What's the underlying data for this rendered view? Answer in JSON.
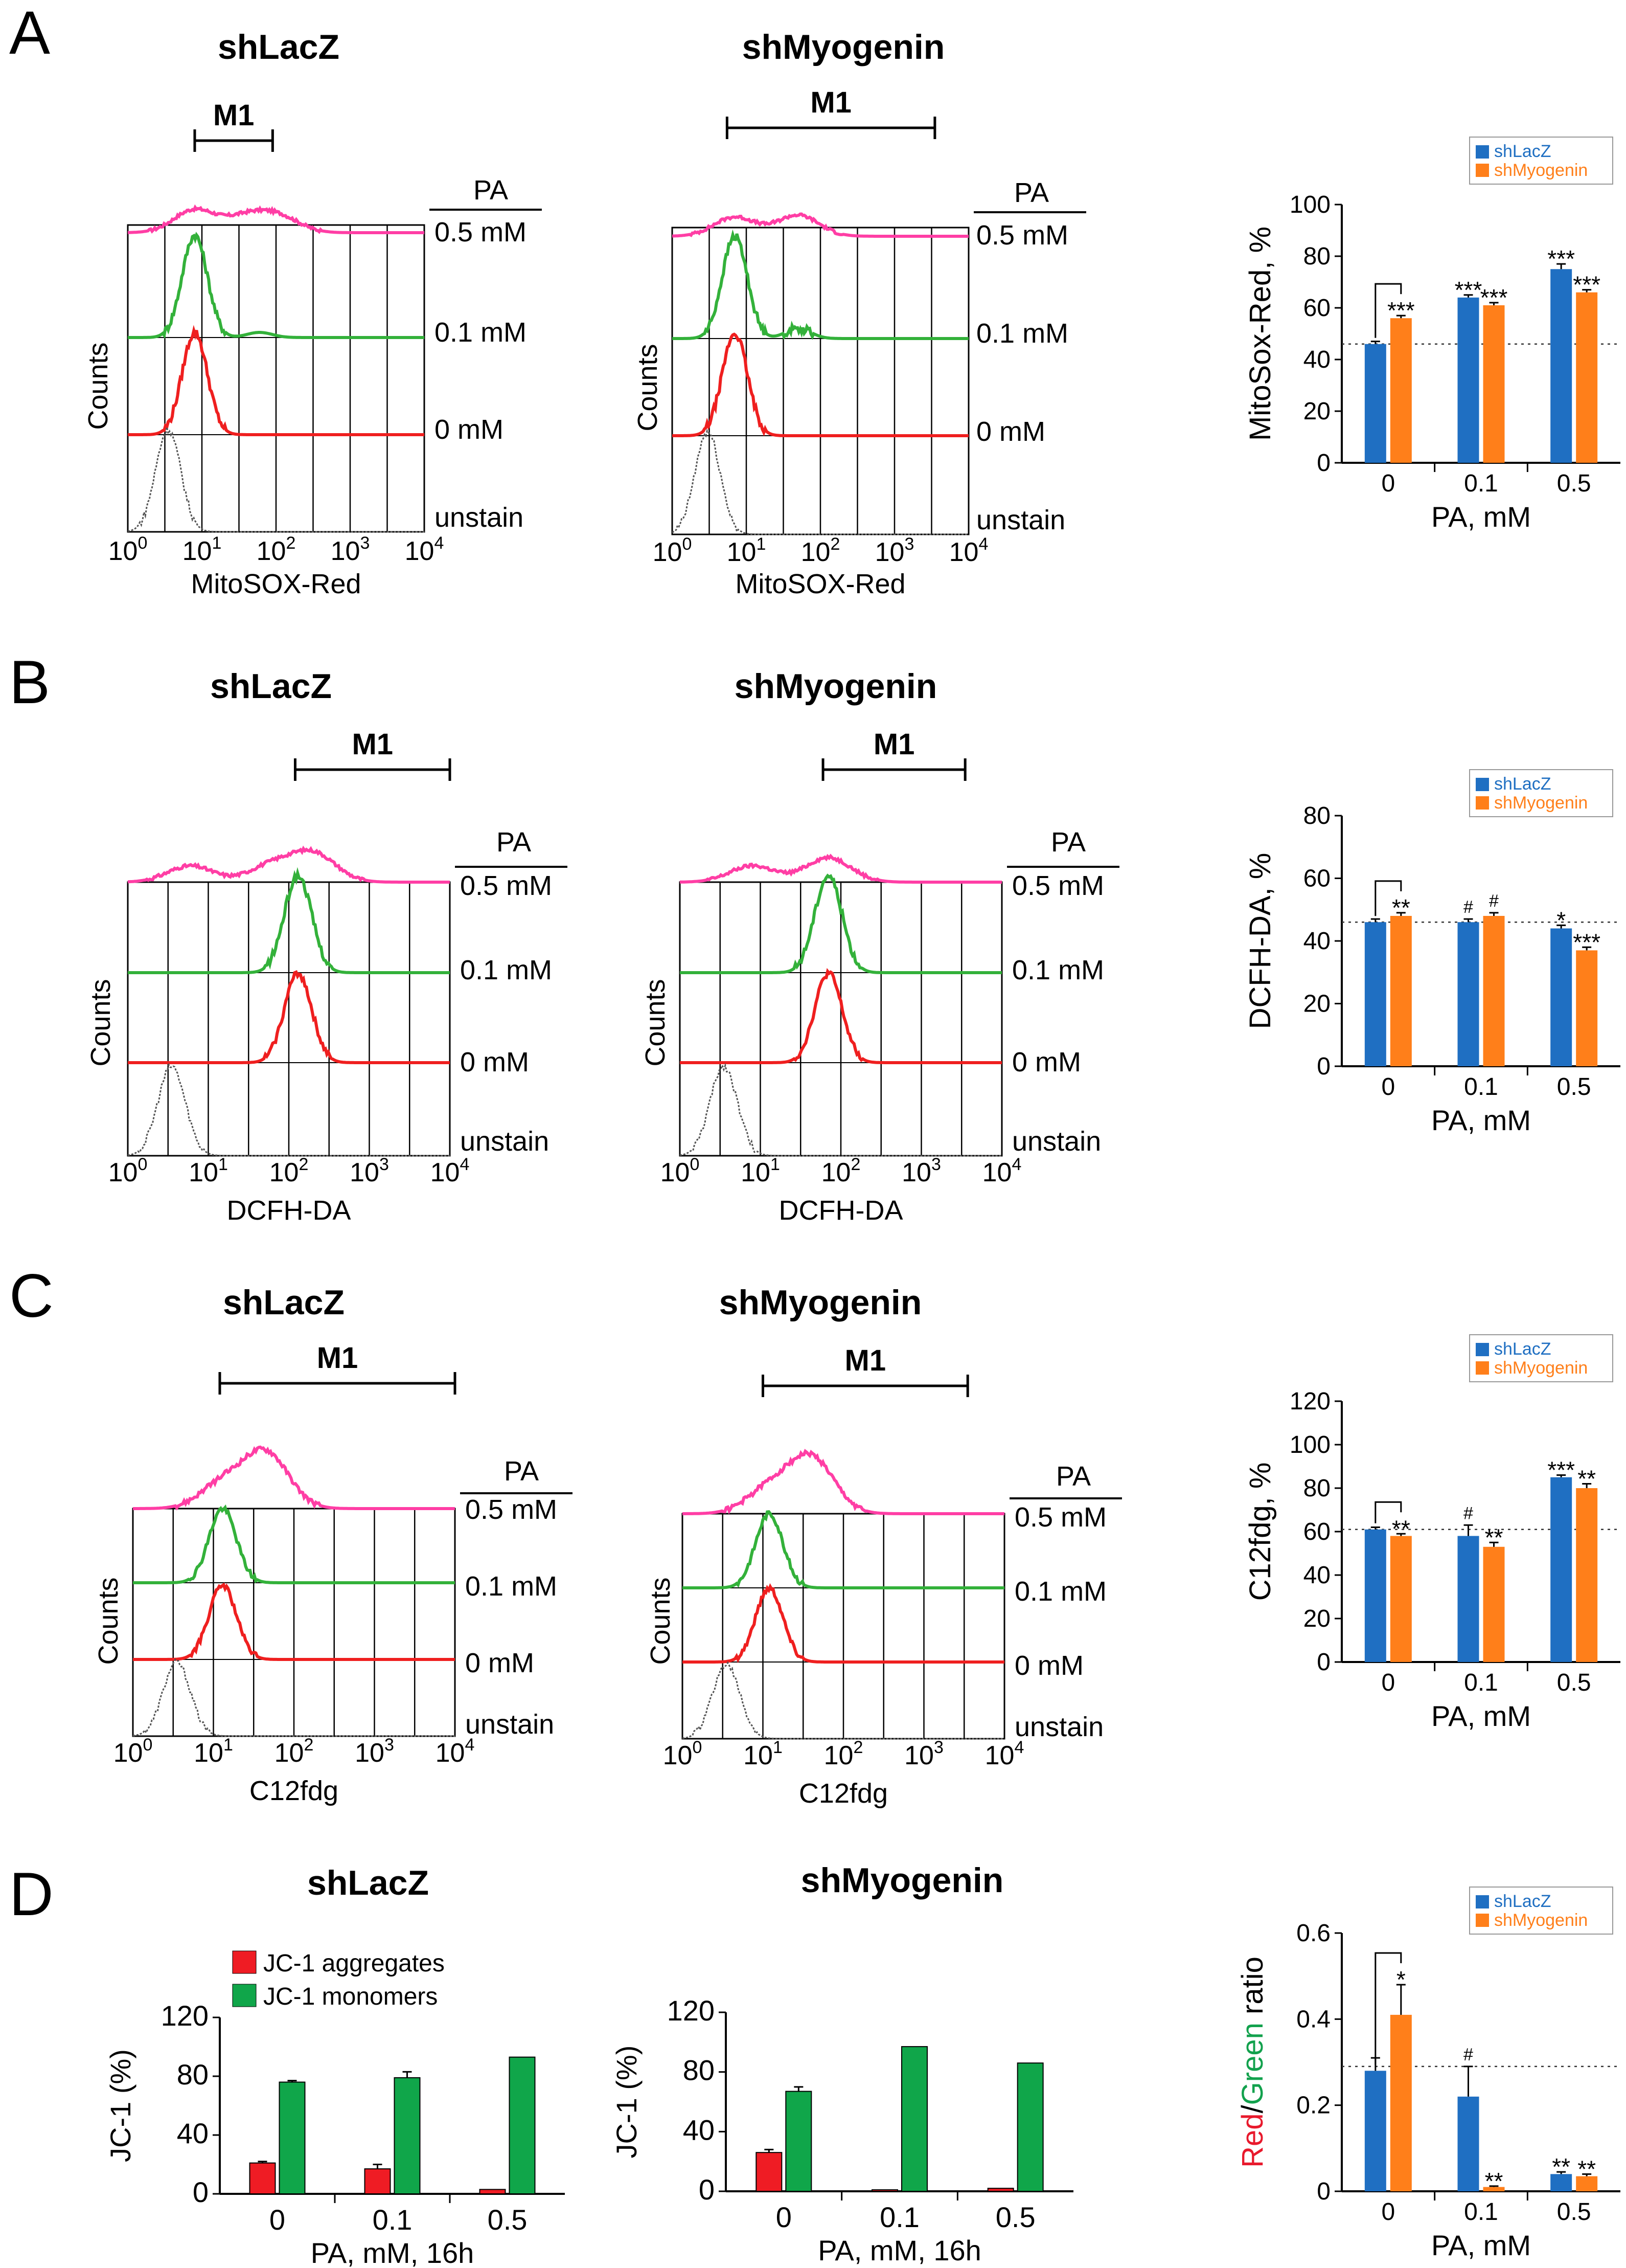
{
  "colors": {
    "pa05": "#ff3ea5",
    "pa01": "#33b13a",
    "pa0": "#ef1f1f",
    "unstain": "#555555",
    "shLacZ": "#1f6fc2",
    "shMyogenin": "#ff7f1a",
    "jc_aggregates": "#ef1c24",
    "jc_monomers": "#10a64a",
    "red_text": "#e8192c",
    "green_text": "#12a14d"
  },
  "legend": {
    "shLacZ": "shLacZ",
    "shMyogenin": "shMyogenin"
  },
  "hist_labels": {
    "counts": "Counts",
    "pa": "PA",
    "unstain": "unstain",
    "levels": [
      "0.5 mM",
      "0.1 mM",
      "0 mM"
    ]
  },
  "jc_legend": {
    "aggregates": "JC-1 aggregates",
    "monomers": "JC-1 monomers"
  },
  "chart_data": [
    {
      "type": "line",
      "panel": "A",
      "title": "shLacZ",
      "xlabel": "MitoSOX-Red",
      "ylabel": "Counts",
      "x_scale": "log",
      "xlim": [
        1,
        10000
      ],
      "gate": {
        "name": "M1",
        "range": [
          8,
          90
        ]
      },
      "series": [
        {
          "name": "0.5 mM",
          "peaks": [
            [
              8,
              0.6
            ],
            [
              40,
              0.4
            ],
            [
              110,
              0.4
            ]
          ]
        },
        {
          "name": "0.1 mM",
          "peaks": [
            [
              8,
              1.0
            ],
            [
              60,
              0.05
            ]
          ]
        },
        {
          "name": "0 mM",
          "peaks": [
            [
              8,
              1.0
            ]
          ]
        },
        {
          "name": "unstain",
          "peaks": [
            [
              3.5,
              1.0
            ]
          ]
        }
      ]
    },
    {
      "type": "line",
      "panel": "A",
      "title": "shMyogenin",
      "xlabel": "MitoSOX-Red",
      "ylabel": "Counts",
      "x_scale": "log",
      "xlim": [
        1,
        10000
      ],
      "gate": {
        "name": "M1",
        "range": [
          5.5,
          3500
        ]
      },
      "series": [
        {
          "name": "0.5 mM",
          "peaks": [
            [
              7,
              0.5
            ],
            [
              50,
              0.55
            ]
          ]
        },
        {
          "name": "0.1 mM",
          "peaks": [
            [
              7,
              1.0
            ],
            [
              50,
              0.1
            ]
          ]
        },
        {
          "name": "0 mM",
          "peaks": [
            [
              7,
              1.0
            ]
          ]
        },
        {
          "name": "unstain",
          "peaks": [
            [
              3,
              1.0
            ]
          ]
        }
      ]
    },
    {
      "type": "bar",
      "panel": "A",
      "categories": [
        "0",
        "0.1",
        "0.5"
      ],
      "xlabel": "PA, mM",
      "ylabel": "MitoSox-Red, %",
      "ylim": [
        0,
        100
      ],
      "yticks": [
        0,
        20,
        40,
        60,
        80,
        100
      ],
      "baseline": 46,
      "series": [
        {
          "name": "shLacZ",
          "values": [
            46,
            64,
            75
          ],
          "errors": [
            1,
            1,
            2
          ]
        },
        {
          "name": "shMyogenin",
          "values": [
            56,
            61,
            66
          ],
          "errors": [
            1,
            1,
            1
          ]
        }
      ],
      "annotations": [
        {
          "category": 0,
          "series": "shMyogenin",
          "text": "***",
          "bracket": true
        },
        {
          "category": 1,
          "series": "shLacZ",
          "text": "***"
        },
        {
          "category": 1,
          "series": "shMyogenin",
          "text": "***"
        },
        {
          "category": 2,
          "series": "shLacZ",
          "text": "***"
        },
        {
          "category": 2,
          "series": "shMyogenin",
          "text": "***"
        }
      ]
    },
    {
      "type": "line",
      "panel": "B",
      "title": "shLacZ",
      "xlabel": "DCFH-DA",
      "ylabel": "Counts",
      "x_scale": "log",
      "xlim": [
        1,
        10000
      ],
      "gate": {
        "name": "M1",
        "range": [
          120,
          10000
        ]
      },
      "series": [
        {
          "name": "0.5 mM",
          "peaks": [
            [
              6,
              0.4
            ],
            [
              60,
              0.4
            ],
            [
              200,
              0.7
            ]
          ]
        },
        {
          "name": "0.1 mM",
          "peaks": [
            [
              130,
              1.0
            ]
          ]
        },
        {
          "name": "0 mM",
          "peaks": [
            [
              130,
              1.0
            ]
          ]
        },
        {
          "name": "unstain",
          "peaks": [
            [
              3.5,
              1.0
            ]
          ]
        }
      ]
    },
    {
      "type": "line",
      "panel": "B",
      "title": "shMyogenin",
      "xlabel": "DCFH-DA",
      "ylabel": "Counts",
      "x_scale": "log",
      "xlim": [
        1,
        10000
      ],
      "gate": {
        "name": "M1",
        "range": [
          60,
          3500
        ]
      },
      "series": [
        {
          "name": "0.5 mM",
          "peaks": [
            [
              8,
              0.4
            ],
            [
              70,
              0.6
            ]
          ]
        },
        {
          "name": "0.1 mM",
          "peaks": [
            [
              70,
              1.0
            ]
          ]
        },
        {
          "name": "0 mM",
          "peaks": [
            [
              70,
              1.0
            ]
          ]
        },
        {
          "name": "unstain",
          "peaks": [
            [
              3.5,
              1.0
            ]
          ]
        }
      ]
    },
    {
      "type": "bar",
      "panel": "B",
      "categories": [
        "0",
        "0.1",
        "0.5"
      ],
      "xlabel": "PA, mM",
      "ylabel": "DCFH-DA, %",
      "ylim": [
        0,
        80
      ],
      "yticks": [
        0,
        20,
        40,
        60,
        80
      ],
      "baseline": 46,
      "series": [
        {
          "name": "shLacZ",
          "values": [
            46,
            46,
            44
          ],
          "errors": [
            1,
            1,
            1
          ]
        },
        {
          "name": "shMyogenin",
          "values": [
            48,
            48,
            37
          ],
          "errors": [
            1,
            1,
            1
          ]
        }
      ],
      "annotations": [
        {
          "category": 0,
          "series": "shMyogenin",
          "text": "**",
          "bracket": true
        },
        {
          "category": 1,
          "series": "shLacZ",
          "text": "#"
        },
        {
          "category": 1,
          "series": "shMyogenin",
          "text": "#"
        },
        {
          "category": 2,
          "series": "shLacZ",
          "text": "*"
        },
        {
          "category": 2,
          "series": "shMyogenin",
          "text": "***"
        }
      ]
    },
    {
      "type": "line",
      "panel": "C",
      "title": "shLacZ",
      "xlabel": "C12fdg",
      "ylabel": "Counts",
      "x_scale": "log",
      "xlim": [
        1,
        10000
      ],
      "gate": {
        "name": "M1",
        "range": [
          12,
          10000
        ]
      },
      "series": [
        {
          "name": "0.5 mM",
          "peaks": [
            [
              13,
              0.4
            ],
            [
              45,
              0.9
            ]
          ]
        },
        {
          "name": "0.1 mM",
          "peaks": [
            [
              13,
              1.0
            ]
          ]
        },
        {
          "name": "0 mM",
          "peaks": [
            [
              13,
              1.0
            ]
          ]
        },
        {
          "name": "unstain",
          "peaks": [
            [
              3.5,
              1.0
            ]
          ]
        }
      ]
    },
    {
      "type": "line",
      "panel": "C",
      "title": "shMyogenin",
      "xlabel": "C12fdg",
      "ylabel": "Counts",
      "x_scale": "log",
      "xlim": [
        1,
        10000
      ],
      "gate": {
        "name": "M1",
        "range": [
          10,
          3500
        ]
      },
      "series": [
        {
          "name": "0.5 mM",
          "peaks": [
            [
              12,
              0.4
            ],
            [
              40,
              0.9
            ]
          ]
        },
        {
          "name": "0.1 mM",
          "peaks": [
            [
              12,
              1.0
            ]
          ]
        },
        {
          "name": "0 mM",
          "peaks": [
            [
              12,
              1.0
            ]
          ]
        },
        {
          "name": "unstain",
          "peaks": [
            [
              3.5,
              1.0
            ]
          ]
        }
      ]
    },
    {
      "type": "bar",
      "panel": "C",
      "categories": [
        "0",
        "0.1",
        "0.5"
      ],
      "xlabel": "PA, mM",
      "ylabel": "C12fdg, %",
      "ylim": [
        0,
        120
      ],
      "yticks": [
        0,
        20,
        40,
        60,
        80,
        100,
        120
      ],
      "baseline": 61,
      "series": [
        {
          "name": "shLacZ",
          "values": [
            61,
            58,
            85
          ],
          "errors": [
            1,
            5,
            1
          ]
        },
        {
          "name": "shMyogenin",
          "values": [
            58,
            53,
            80
          ],
          "errors": [
            1,
            2,
            2
          ]
        }
      ],
      "annotations": [
        {
          "category": 0,
          "series": "shMyogenin",
          "text": "**",
          "bracket": true
        },
        {
          "category": 1,
          "series": "shLacZ",
          "text": "#"
        },
        {
          "category": 1,
          "series": "shMyogenin",
          "text": "**"
        },
        {
          "category": 2,
          "series": "shLacZ",
          "text": "***"
        },
        {
          "category": 2,
          "series": "shMyogenin",
          "text": "**"
        }
      ]
    },
    {
      "type": "bar",
      "panel": "D",
      "title": "shLacZ",
      "categories": [
        "0",
        "0.1",
        "0.5"
      ],
      "xlabel": "PA, mM, 16h",
      "ylabel": "JC-1 (%)",
      "ylim": [
        0,
        120
      ],
      "yticks": [
        0,
        40,
        80,
        120
      ],
      "series": [
        {
          "name": "JC-1 aggregates",
          "values": [
            21,
            17,
            3
          ],
          "errors": [
            1,
            3,
            0
          ]
        },
        {
          "name": "JC-1 monomers",
          "values": [
            76,
            79,
            93
          ],
          "errors": [
            1,
            4,
            0
          ]
        }
      ]
    },
    {
      "type": "bar",
      "panel": "D",
      "title": "shMyogenin",
      "categories": [
        "0",
        "0.1",
        "0.5"
      ],
      "xlabel": "PA, mM, 16h",
      "ylabel": "JC-1 (%)",
      "ylim": [
        0,
        120
      ],
      "yticks": [
        0,
        40,
        80,
        120
      ],
      "series": [
        {
          "name": "JC-1 aggregates",
          "values": [
            26,
            1,
            2
          ],
          "errors": [
            2,
            0,
            0
          ]
        },
        {
          "name": "JC-1 monomers",
          "values": [
            67,
            97,
            86
          ],
          "errors": [
            3,
            0,
            0
          ]
        }
      ]
    },
    {
      "type": "bar",
      "panel": "D",
      "categories": [
        "0",
        "0.1",
        "0.5"
      ],
      "xlabel": "PA, mM",
      "ylabel": "Red/Green ratio",
      "ylim": [
        0,
        0.6
      ],
      "yticks": [
        0,
        0.2,
        0.4,
        0.6
      ],
      "baseline": 0.29,
      "series": [
        {
          "name": "shLacZ",
          "values": [
            0.28,
            0.22,
            0.04
          ],
          "errors": [
            0.03,
            0.07,
            0.005
          ]
        },
        {
          "name": "shMyogenin",
          "values": [
            0.41,
            0.01,
            0.035
          ],
          "errors": [
            0.07,
            0.002,
            0.005
          ]
        }
      ],
      "annotations": [
        {
          "category": 0,
          "series": "shMyogenin",
          "text": "*",
          "bracket": true
        },
        {
          "category": 1,
          "series": "shLacZ",
          "text": "#"
        },
        {
          "category": 1,
          "series": "shMyogenin",
          "text": "**"
        },
        {
          "category": 2,
          "series": "shLacZ",
          "text": "**"
        },
        {
          "category": 2,
          "series": "shMyogenin",
          "text": "**"
        }
      ]
    }
  ],
  "panels": [
    {
      "letter": "A",
      "left_title": "shLacZ",
      "right_title": "shMyogenin"
    },
    {
      "letter": "B",
      "left_title": "shLacZ",
      "right_title": "shMyogenin"
    },
    {
      "letter": "C",
      "left_title": "shLacZ",
      "right_title": "shMyogenin"
    },
    {
      "letter": "D",
      "left_title": "shLacZ",
      "right_title": "shMyogenin"
    }
  ]
}
